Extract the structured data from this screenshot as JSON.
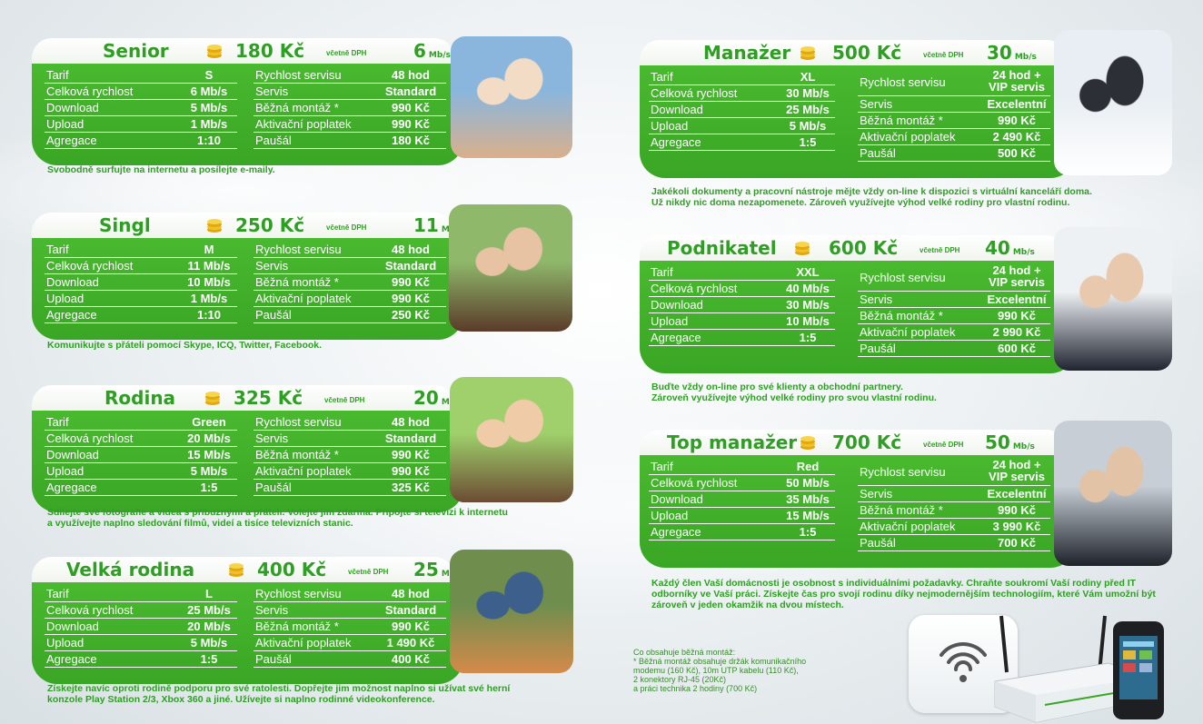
{
  "colors": {
    "green": "#43b12b",
    "green_text": "#2f9e24",
    "white": "#ffffff"
  },
  "plans": [
    {
      "name": "Senior",
      "price": "180 Kč",
      "dph": "včetně DPH",
      "speed": "6",
      "speed_unit": "Mb/s",
      "rows": [
        [
          "Tarif",
          "S",
          "Rychlost servisu",
          "48 hod"
        ],
        [
          "Celková rychlost",
          "6 Mb/s",
          "Servis",
          "Standard"
        ],
        [
          "Download",
          "5 Mb/s",
          "Běžná montáž *",
          "990 Kč"
        ],
        [
          "Upload",
          "1 Mb/s",
          "Aktivační poplatek",
          "990 Kč"
        ],
        [
          "Agregace",
          "1:10",
          "Paušál",
          "180 Kč"
        ]
      ],
      "desc": [
        "Svobodně surfujte na internetu a posílejte e-maily."
      ],
      "photo": "seniors-photo"
    },
    {
      "name": "Singl",
      "price": "250 Kč",
      "dph": "včetně DPH",
      "speed": "11",
      "speed_unit": "Mb/s",
      "rows": [
        [
          "Tarif",
          "M",
          "Rychlost servisu",
          "48 hod"
        ],
        [
          "Celková rychlost",
          "11 Mb/s",
          "Servis",
          "Standard"
        ],
        [
          "Download",
          "10 Mb/s",
          "Běžná montáž *",
          "990 Kč"
        ],
        [
          "Upload",
          "1 Mb/s",
          "Aktivační poplatek",
          "990 Kč"
        ],
        [
          "Agregace",
          "1:10",
          "Paušál",
          "250 Kč"
        ]
      ],
      "desc": [
        "Komunikujte s přáteli pomocí Skype, ICQ, Twitter, Facebook."
      ],
      "photo": "woman-photo"
    },
    {
      "name": "Rodina",
      "price": "325 Kč",
      "dph": "včetně DPH",
      "speed": "20",
      "speed_unit": "Mb/s",
      "rows": [
        [
          "Tarif",
          "Green",
          "Rychlost servisu",
          "48 hod"
        ],
        [
          "Celková rychlost",
          "20 Mb/s",
          "Servis",
          "Standard"
        ],
        [
          "Download",
          "15 Mb/s",
          "Běžná montáž *",
          "990 Kč"
        ],
        [
          "Upload",
          "5 Mb/s",
          "Aktivační poplatek",
          "990 Kč"
        ],
        [
          "Agregace",
          "1:5",
          "Paušál",
          "325 Kč"
        ]
      ],
      "desc": [
        "Sdílejte své fotografie a videa s příbuznými a přáteli. Volejte jim zdarma. Připojte si televizi k internetu",
        "a využívejte naplno sledování filmů, videí a tisíce televizních stanic."
      ],
      "photo": "family-photo"
    },
    {
      "name": "Velká rodina",
      "price": "400 Kč",
      "dph": "včetně DPH",
      "speed": "25",
      "speed_unit": "Mb/s",
      "rows": [
        [
          "Tarif",
          "L",
          "Rychlost servisu",
          "48 hod"
        ],
        [
          "Celková rychlost",
          "25 Mb/s",
          "Servis",
          "Standard"
        ],
        [
          "Download",
          "20 Mb/s",
          "Běžná montáž *",
          "990 Kč"
        ],
        [
          "Upload",
          "5 Mb/s",
          "Aktivační poplatek",
          "1 490 Kč"
        ],
        [
          "Agregace",
          "1:5",
          "Paušál",
          "400 Kč"
        ]
      ],
      "desc": [
        "Získejte navíc oproti rodině podporu pro své ratolesti. Dopřejte jim možnost naplno si užívat své herní",
        "konzole Play Station 2/3, Xbox 360 a jiné. Užívejte si naplno rodinné videokonference."
      ],
      "photo": "big-family-photo"
    },
    {
      "name": "Manažer",
      "price": "500 Kč",
      "dph": "včetně DPH",
      "speed": "30",
      "speed_unit": "Mb/s",
      "left": [
        [
          "Tarif",
          "XL"
        ],
        [
          "Celková rychlost",
          "30 Mb/s"
        ],
        [
          "Download",
          "25 Mb/s"
        ],
        [
          "Upload",
          "5 Mb/s"
        ],
        [
          "Agregace",
          "1:5"
        ]
      ],
      "right": [
        [
          "Rychlost servisu",
          "24 hod + VIP servis"
        ],
        [
          "Servis",
          "Excelentní"
        ],
        [
          "Běžná montáž *",
          "990 Kč"
        ],
        [
          "Aktivační poplatek",
          "2 490 Kč"
        ],
        [
          "Paušál",
          "500 Kč"
        ]
      ],
      "desc": [
        "Jakékoli dokumenty a pracovní nástroje mějte vždy on-line k dispozici s virtuální kanceláří doma.",
        "Už nikdy nic doma nezapomenete. Zároveň využívejte výhod velké rodiny pro vlastní rodinu."
      ],
      "photo": "manager-photo"
    },
    {
      "name": "Podnikatel",
      "price": "600 Kč",
      "dph": "včetně DPH",
      "speed": "40",
      "speed_unit": "Mb/s",
      "left": [
        [
          "Tarif",
          "XXL"
        ],
        [
          "Celková rychlost",
          "40 Mb/s"
        ],
        [
          "Download",
          "30 Mb/s"
        ],
        [
          "Upload",
          "10 Mb/s"
        ],
        [
          "Agregace",
          "1:5"
        ]
      ],
      "right": [
        [
          "Rychlost servisu",
          "24 hod + VIP servis"
        ],
        [
          "Servis",
          "Excelentní"
        ],
        [
          "Běžná montáž *",
          "990 Kč"
        ],
        [
          "Aktivační poplatek",
          "2 990 Kč"
        ],
        [
          "Paušál",
          "600 Kč"
        ]
      ],
      "desc": [
        "Buďte vždy on-line pro své klienty a obchodní partnery.",
        "Zároveň využívejte výhod velké rodiny pro svou vlastní rodinu."
      ],
      "photo": "business-people-photo"
    },
    {
      "name": "Top manažer",
      "price": "700 Kč",
      "dph": "včetně DPH",
      "speed": "50",
      "speed_unit": "Mb/s",
      "left": [
        [
          "Tarif",
          "Red"
        ],
        [
          "Celková rychlost",
          "50 Mb/s"
        ],
        [
          "Download",
          "35 Mb/s"
        ],
        [
          "Upload",
          "15 Mb/s"
        ],
        [
          "Agregace",
          "1:5"
        ]
      ],
      "right": [
        [
          "Rychlost servisu",
          "24 hod + VIP servis"
        ],
        [
          "Servis",
          "Excelentní"
        ],
        [
          "Běžná montáž *",
          "990 Kč"
        ],
        [
          "Aktivační poplatek",
          "3 990 Kč"
        ],
        [
          "Paušál",
          "700 Kč"
        ]
      ],
      "desc": [
        "Každý člen Vaší domácnosti je osobnost s individuálními požadavky. Chraňte soukromí Vaší rodiny před IT",
        "odborníky ve Vaší práci. Získejte čas pro svojí rodinu díky nejmodernějším technologiím, které Vám umožní být",
        "zároveň v jeden okamžik na dvou místech."
      ],
      "photo": "top-manager-photo"
    }
  ],
  "footnote": [
    "Co obsahuje běžná montáž:",
    "* Běžná montáž obsahuje držák komunikačního",
    "modemu (160 Kč), 10m UTP kabelu (110 Kč),",
    "2 konektory RJ-45 (20Kč)",
    "a práci technika 2 hodiny (700 Kč)"
  ],
  "icons": {
    "coin": "coin-stack-icon",
    "wifi": "wifi-icon",
    "router": "router-device",
    "phone": "smartphone-device"
  }
}
